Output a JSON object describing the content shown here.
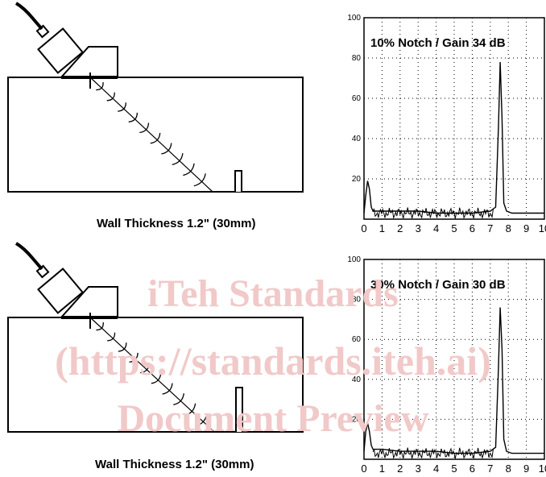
{
  "panels": [
    {
      "caption": "Wall Thickness 1.2\" (30mm)",
      "chart_data": {
        "type": "line",
        "title": "10% Notch / Gain 34 dB",
        "xlabel": "",
        "ylabel": "",
        "xlim": [
          0,
          10
        ],
        "ylim": [
          0,
          100
        ],
        "x_ticks": [
          "0",
          "1",
          "2",
          "3",
          "4",
          "5",
          "6",
          "7",
          "8",
          "9",
          "10"
        ],
        "y_ticks": [
          "20",
          "40",
          "60",
          "80",
          "100"
        ],
        "grid": true,
        "x": [
          0,
          0.1,
          0.2,
          0.3,
          0.4,
          0.5,
          1,
          2,
          3,
          4,
          5,
          6,
          7,
          7.3,
          7.45,
          7.55,
          7.65,
          7.75,
          7.9,
          8.2,
          9,
          10
        ],
        "y": [
          3,
          12,
          19,
          15,
          6,
          4,
          4,
          4,
          4,
          3,
          3,
          3,
          4,
          6,
          45,
          78,
          50,
          8,
          4,
          3,
          3,
          3
        ]
      },
      "notch_label": ""
    },
    {
      "caption": "Wall Thickness 1.2\" (30mm)",
      "chart_data": {
        "type": "line",
        "title": "30% Notch / Gain 30 dB",
        "xlabel": "",
        "ylabel": "",
        "xlim": [
          0,
          10
        ],
        "ylim": [
          0,
          100
        ],
        "x_ticks": [
          "0",
          "1",
          "2",
          "3",
          "4",
          "5",
          "6",
          "7",
          "8",
          "9",
          "10"
        ],
        "y_ticks": [
          "20",
          "40",
          "60",
          "80",
          "100"
        ],
        "grid": true,
        "x": [
          0,
          0.1,
          0.2,
          0.3,
          0.4,
          0.5,
          1,
          2,
          3,
          4,
          5,
          6,
          7,
          7.3,
          7.45,
          7.55,
          7.65,
          7.75,
          7.9,
          8.2,
          9,
          10
        ],
        "y": [
          4,
          14,
          18,
          14,
          7,
          5,
          5,
          4,
          4,
          4,
          3,
          3,
          4,
          6,
          45,
          76,
          55,
          10,
          4,
          3,
          3,
          3
        ]
      }
    }
  ],
  "watermark": {
    "line1": "iTeh Standards",
    "line2": "(https://standards.iteh.ai)",
    "line3": "Document Preview"
  }
}
